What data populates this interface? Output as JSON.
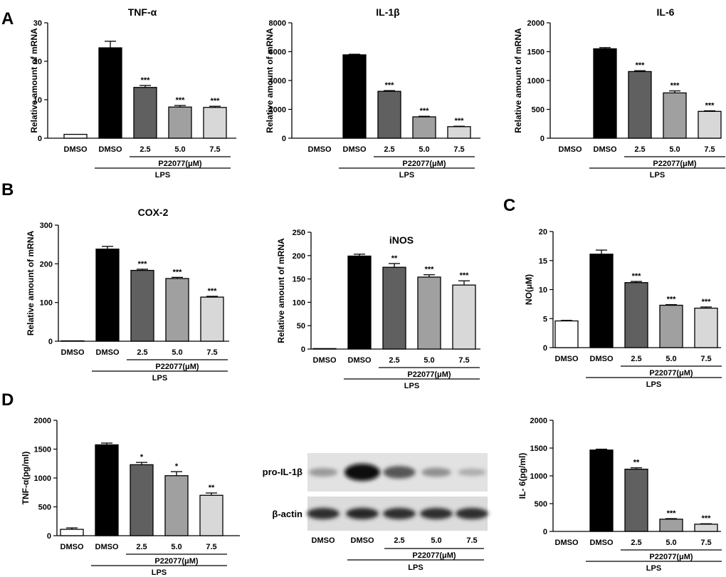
{
  "figure": {
    "panel_labels": [
      "A",
      "B",
      "C",
      "D"
    ],
    "bar_colors": [
      "#ffffff",
      "#000000",
      "#606060",
      "#a0a0a0",
      "#d8d8d8"
    ],
    "group_labels": {
      "lps": "LPS",
      "drug": "P22077(μM)"
    }
  },
  "blot": {
    "row_labels": [
      "pro-IL-1β",
      "β-actin"
    ],
    "lane_labels": [
      "DMSO",
      "DMSO",
      "2.5",
      "5.0",
      "7.5"
    ],
    "pro_il1b_band_intensity": [
      0.25,
      1.0,
      0.6,
      0.3,
      0.15
    ],
    "actin_band_intensity": [
      0.85,
      0.9,
      0.85,
      0.85,
      0.85
    ]
  },
  "chart_data": [
    {
      "type": "bar",
      "title": "TNF-α",
      "ylabel": "Relative amount of mRNA",
      "categories": [
        "DMSO",
        "DMSO",
        "2.5",
        "5.0",
        "7.5"
      ],
      "values": [
        1.0,
        23.5,
        13.2,
        8.1,
        8.0
      ],
      "errors": [
        0,
        1.7,
        0.5,
        0.4,
        0.3
      ],
      "significance": [
        "",
        "",
        "***",
        "***",
        "***"
      ],
      "ylim": [
        0,
        30
      ],
      "yticks": [
        0,
        10,
        20,
        30
      ]
    },
    {
      "type": "bar",
      "title": "IL-1β",
      "ylabel": "Relative amount of mRNA",
      "categories": [
        "DMSO",
        "DMSO",
        "2.5",
        "5.0",
        "7.5"
      ],
      "values": [
        0,
        5780,
        3250,
        1480,
        800
      ],
      "errors": [
        0,
        40,
        50,
        40,
        30
      ],
      "significance": [
        "",
        "",
        "***",
        "***",
        "***"
      ],
      "ylim": [
        0,
        8000
      ],
      "yticks": [
        0,
        2000,
        4000,
        6000,
        8000
      ]
    },
    {
      "type": "bar",
      "title": "IL-6",
      "ylabel": "Relative amount of mRNA",
      "categories": [
        "DMSO",
        "DMSO",
        "2.5",
        "5.0",
        "7.5"
      ],
      "values": [
        0,
        1550,
        1155,
        785,
        465
      ],
      "errors": [
        0,
        20,
        15,
        35,
        10
      ],
      "significance": [
        "",
        "",
        "***",
        "***",
        "***"
      ],
      "ylim": [
        0,
        2000
      ],
      "yticks": [
        0,
        500,
        1000,
        1500,
        2000
      ]
    },
    {
      "type": "bar",
      "title": "COX-2",
      "ylabel": "Relative amount of mRNA",
      "categories": [
        "DMSO",
        "DMSO",
        "2.5",
        "5.0",
        "7.5"
      ],
      "values": [
        1,
        238,
        183,
        162,
        114
      ],
      "errors": [
        0,
        7,
        3,
        3,
        2
      ],
      "significance": [
        "",
        "",
        "***",
        "***",
        "***"
      ],
      "ylim": [
        0,
        300
      ],
      "yticks": [
        0,
        100,
        200,
        300
      ]
    },
    {
      "type": "bar",
      "title": "iNOS",
      "ylabel": "Relative amount of mRNA",
      "categories": [
        "DMSO",
        "DMSO",
        "2.5",
        "5.0",
        "7.5"
      ],
      "values": [
        1,
        199,
        175,
        154,
        137
      ],
      "errors": [
        0,
        4,
        8,
        5,
        9
      ],
      "significance": [
        "",
        "",
        "**",
        "***",
        "***"
      ],
      "ylim": [
        0,
        250
      ],
      "yticks": [
        0,
        50,
        100,
        150,
        200,
        250
      ]
    },
    {
      "type": "bar",
      "title": "",
      "ylabel": "NO(μM)",
      "categories": [
        "DMSO",
        "DMSO",
        "2.5",
        "5.0",
        "7.5"
      ],
      "values": [
        4.6,
        16.1,
        11.2,
        7.3,
        6.8
      ],
      "errors": [
        0.1,
        0.7,
        0.2,
        0.1,
        0.2
      ],
      "significance": [
        "",
        "",
        "***",
        "***",
        "***"
      ],
      "ylim": [
        0,
        20
      ],
      "yticks": [
        0,
        5,
        10,
        15,
        20
      ]
    },
    {
      "type": "bar",
      "title": "",
      "ylabel": "TNF-α(pg/ml)",
      "categories": [
        "DMSO",
        "DMSO",
        "2.5",
        "5.0",
        "7.5"
      ],
      "values": [
        110,
        1575,
        1230,
        1040,
        700
      ],
      "errors": [
        25,
        30,
        40,
        70,
        40
      ],
      "significance": [
        "",
        "",
        "*",
        "*",
        "**"
      ],
      "ylim": [
        0,
        2000
      ],
      "yticks": [
        0,
        500,
        1000,
        1500,
        2000
      ]
    },
    {
      "type": "bar",
      "title": "",
      "ylabel": "IL- 6(pg/ml)",
      "categories": [
        "DMSO",
        "DMSO",
        "2.5",
        "5.0",
        "7.5"
      ],
      "values": [
        0,
        1465,
        1120,
        220,
        130
      ],
      "errors": [
        0,
        15,
        25,
        10,
        8
      ],
      "significance": [
        "",
        "",
        "**",
        "***",
        "***"
      ],
      "ylim": [
        0,
        2000
      ],
      "yticks": [
        0,
        500,
        1000,
        1500,
        2000
      ]
    }
  ]
}
